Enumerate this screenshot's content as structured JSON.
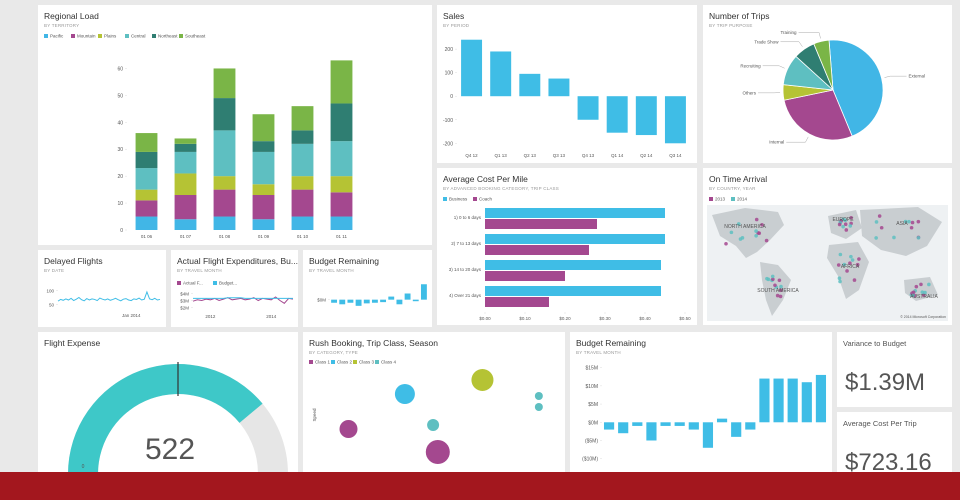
{
  "chart_data": [
    {
      "type": "stacked_bar",
      "title": "Regional Load",
      "subtitle": "BY TERRITORY",
      "categories": [
        "01 06",
        "01 07",
        "01 08",
        "01 09",
        "01 10",
        "01 11"
      ],
      "series": [
        {
          "name": "Pacific",
          "color": "#41b6e6",
          "values": [
            5,
            4,
            5,
            4,
            5,
            5
          ]
        },
        {
          "name": "Mountain",
          "color": "#a4488f",
          "values": [
            6,
            9,
            10,
            9,
            10,
            9
          ]
        },
        {
          "name": "Plains",
          "color": "#b5c334",
          "values": [
            4,
            8,
            5,
            4,
            5,
            6
          ]
        },
        {
          "name": "Central",
          "color": "#5ebfc1",
          "values": [
            8,
            8,
            17,
            12,
            12,
            13
          ]
        },
        {
          "name": "Northeast",
          "color": "#2f7e72",
          "values": [
            6,
            3,
            12,
            4,
            5,
            14
          ]
        },
        {
          "name": "Southeast",
          "color": "#7ab547",
          "values": [
            7,
            2,
            11,
            10,
            9,
            16
          ]
        }
      ],
      "ylim": [
        0,
        65
      ],
      "yticks": [
        0,
        10,
        20,
        30,
        40,
        50,
        60
      ]
    },
    {
      "type": "bar",
      "title": "Sales",
      "subtitle": "BY PERIOD",
      "categories": [
        "Q4 12",
        "Q1 13",
        "Q2 13",
        "Q3 13",
        "Q4 13",
        "Q1 14",
        "Q2 14",
        "Q3 14"
      ],
      "values": [
        240,
        190,
        95,
        75,
        -100,
        -155,
        -165,
        -200
      ],
      "color": "#3fbde6",
      "ylim": [
        -220,
        260
      ],
      "yticks": [
        200,
        100,
        0,
        -100,
        -200
      ]
    },
    {
      "type": "pie",
      "title": "Number of Trips",
      "subtitle": "BY TRIP PURPOSE",
      "categories": [
        "External",
        "Internal",
        "Others",
        "Recruiting",
        "Trade Show",
        "Training"
      ],
      "values": [
        45,
        28,
        5,
        10,
        7,
        5
      ],
      "colors": [
        "#41b6e6",
        "#a4488f",
        "#b5c334",
        "#5ebfc1",
        "#2f7e72",
        "#7ab547"
      ]
    },
    {
      "type": "hbar",
      "title": "Average Cost Per Mile",
      "subtitle": "BY ADVANCED BOOKING CATEGORY, TRIP CLASS",
      "categories": [
        "1) 0 to 6 days",
        "2) 7 to 13 days",
        "3) 14 to 20 days",
        "4) Over 21 days"
      ],
      "series": [
        {
          "name": "Business",
          "color": "#3fbde6",
          "values": [
            0.45,
            0.45,
            0.44,
            0.44
          ]
        },
        {
          "name": "Coach",
          "color": "#a4488f",
          "values": [
            0.28,
            0.26,
            0.2,
            0.16
          ]
        }
      ],
      "xlim": [
        0,
        0.5
      ],
      "xticks": [
        {
          "value": 0,
          "label": "$0.00"
        },
        {
          "value": 0.1,
          "label": "$0.10"
        },
        {
          "value": 0.2,
          "label": "$0.20"
        },
        {
          "value": 0.3,
          "label": "$0.30"
        },
        {
          "value": 0.4,
          "label": "$0.40"
        },
        {
          "value": 0.5,
          "label": "$0.50"
        }
      ]
    },
    {
      "type": "map",
      "title": "On Time Arrival",
      "subtitle": "BY COUNTRY, YEAR",
      "series": [
        {
          "name": "2013",
          "color": "#a4488f"
        },
        {
          "name": "2014",
          "color": "#5ebfc1"
        }
      ],
      "regions": [
        "NORTH AMERICA",
        "SOUTH AMERICA",
        "EUROPE",
        "AFRICA",
        "ASIA",
        "AUSTRALIA"
      ],
      "attribution": "© 2014 Microsoft Corporation"
    },
    {
      "type": "line",
      "title": "Delayed Flights",
      "subtitle": "BY DATE",
      "categories": [
        null,
        null,
        null,
        null,
        null,
        null,
        null,
        null,
        null,
        null,
        null,
        null,
        null,
        null,
        null,
        null,
        null,
        null,
        null,
        null,
        null,
        null,
        null,
        null,
        null,
        null,
        null,
        null,
        "Jan 2014",
        null,
        null,
        null,
        null,
        null,
        null,
        null,
        null,
        null,
        null,
        null
      ],
      "series": [
        {
          "name": null,
          "color": "#3fbde6",
          "values": [
            62,
            68,
            65,
            70,
            66,
            72,
            64,
            69,
            75,
            67,
            63,
            71,
            66,
            70,
            68,
            64,
            73,
            69,
            66,
            70,
            65,
            68,
            72,
            67,
            63,
            69,
            71,
            66,
            64,
            70,
            68,
            73,
            66,
            69,
            95,
            70,
            67,
            72,
            66,
            68
          ]
        }
      ],
      "ylim": [
        30,
        120
      ],
      "yticks": [
        100,
        50
      ]
    },
    {
      "type": "line",
      "title": "Actual Flight Expenditures, Bu...",
      "subtitle": "BY TRAVEL MONTH",
      "categories": [
        null,
        null,
        null,
        null,
        "2012",
        null,
        null,
        null,
        null,
        null,
        null,
        null,
        null,
        null,
        null,
        null,
        null,
        null,
        "2014",
        null,
        null,
        null,
        null,
        null
      ],
      "series": [
        {
          "name": "Actual F...",
          "color": "#a4488f",
          "values": [
            2.9,
            3.1,
            3.0,
            3.2,
            3.1,
            3.3,
            3.0,
            3.2,
            3.4,
            3.1,
            3.2,
            3.3,
            3.1,
            3.2,
            3.4,
            3.0,
            3.3,
            3.2,
            3.1,
            3.5,
            3.0,
            2.6,
            3.3,
            3.2
          ]
        },
        {
          "name": "Budget...",
          "color": "#3fbde6",
          "values": [
            3.3,
            3.3,
            3.3,
            3.3,
            3.3,
            3.3,
            3.3,
            3.3,
            3.4,
            3.4,
            3.4,
            3.4,
            3.3,
            3.3,
            3.3,
            3.3,
            3.3,
            3.3,
            3.3,
            3.3,
            3.3,
            3.3,
            3.3,
            3.3
          ]
        }
      ],
      "ylim": [
        1.5,
        4.5
      ],
      "yticks": [
        {
          "value": 4,
          "label": "$4M"
        },
        {
          "value": 3,
          "label": "$3M"
        },
        {
          "value": 2,
          "label": "$2M"
        }
      ]
    },
    {
      "type": "bar",
      "title": "Budget Remaining",
      "subtitle": "BY TRAVEL MONTH",
      "categories": [
        null,
        null,
        null,
        null,
        null,
        null,
        null,
        null,
        null,
        null,
        null,
        null
      ],
      "values": [
        -1,
        -1.5,
        -1,
        -2,
        -1.2,
        -1,
        -0.8,
        1,
        -1.5,
        2,
        -0.5,
        5
      ],
      "color": "#3fbde6",
      "ylim": [
        -4,
        8
      ],
      "yticks": [
        {
          "value": 0,
          "label": "$0M"
        }
      ]
    },
    {
      "type": "gauge",
      "title": "Flight Expense",
      "value": 522,
      "min": 0,
      "max": 670,
      "target": 335,
      "color": "#3ec8c8"
    },
    {
      "type": "scatter",
      "title": "Rush Booking, Trip Class, Season",
      "subtitle": "BY CATEGORY, TYPE",
      "y_label": "Speed",
      "xlim": [
        0,
        100
      ],
      "ylim": [
        0,
        100
      ],
      "series": [
        {
          "name": "Class 1",
          "color": "#a4488f",
          "x": [
            10,
            48
          ],
          "values": [
            39,
            16
          ],
          "sizes": [
            9,
            12
          ]
        },
        {
          "name": "Class 2",
          "color": "#3fbde6",
          "x": [
            34
          ],
          "values": [
            74
          ],
          "sizes": [
            10
          ]
        },
        {
          "name": "Class 3",
          "color": "#b5c334",
          "x": [
            67
          ],
          "values": [
            88
          ],
          "sizes": [
            11
          ]
        },
        {
          "name": "Class 4",
          "color": "#5ebfc1",
          "x": [
            46,
            91,
            91
          ],
          "values": [
            43,
            72,
            61
          ],
          "sizes": [
            6,
            4,
            4
          ]
        }
      ]
    },
    {
      "type": "bar",
      "title": "Budget Remaining",
      "subtitle": "BY TRAVEL MONTH",
      "categories": [
        null,
        null,
        null,
        null,
        null,
        null,
        null,
        null,
        null,
        null,
        null,
        null,
        null,
        null,
        null,
        null
      ],
      "values": [
        -2,
        -3,
        -1,
        -5,
        -1,
        -1,
        -2,
        -7,
        1,
        -4,
        -2,
        12,
        12,
        12,
        11,
        13
      ],
      "color": "#3fbde6",
      "ylim": [
        -12,
        16
      ],
      "yticks": [
        {
          "value": 15,
          "label": "$15M"
        },
        {
          "value": 10,
          "label": "$10M"
        },
        {
          "value": 5,
          "label": "$5M"
        },
        {
          "value": 0,
          "label": "$0M"
        },
        {
          "value": -5,
          "label": "($5M)"
        },
        {
          "value": -10,
          "label": "($10M)"
        }
      ]
    }
  ],
  "cards": [
    {
      "title": "Variance to Budget",
      "value": "$1.39M"
    },
    {
      "title": "Average Cost Per Trip",
      "value": "$723.16"
    }
  ]
}
